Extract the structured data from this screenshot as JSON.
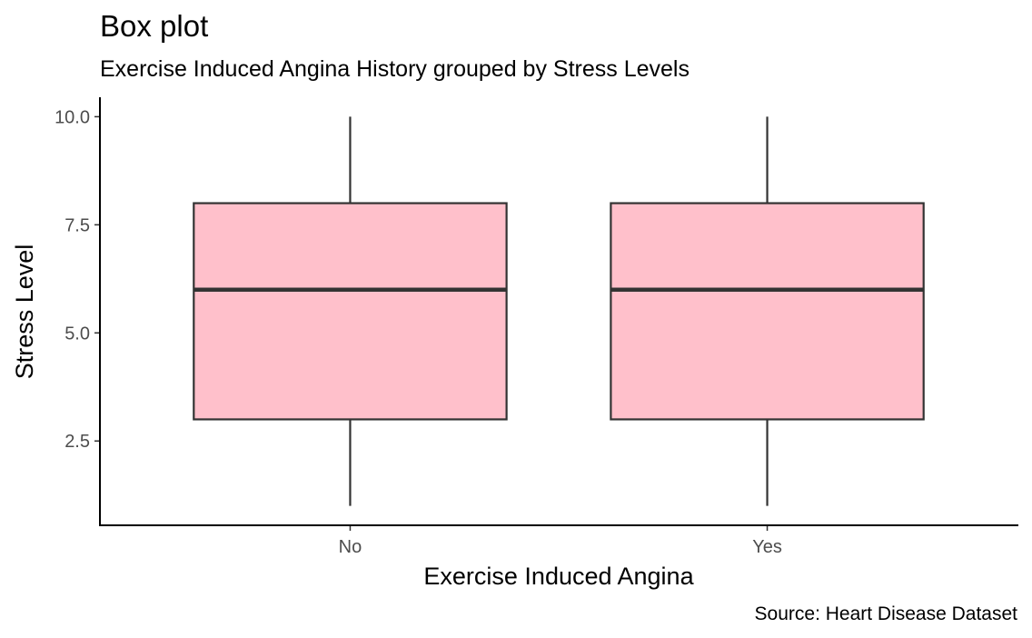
{
  "chart_data": {
    "type": "box",
    "title": "Box plot",
    "subtitle": "Exercise Induced Angina History grouped by Stress Levels",
    "xlabel": "Exercise Induced Angina",
    "ylabel": "Stress Level",
    "caption": "Source: Heart Disease Dataset",
    "categories": [
      "No",
      "Yes"
    ],
    "boxes": [
      {
        "category": "No",
        "min": 1,
        "q1": 3,
        "median": 6,
        "q3": 8,
        "max": 10
      },
      {
        "category": "Yes",
        "min": 1,
        "q1": 3,
        "median": 6,
        "q3": 8,
        "max": 10
      }
    ],
    "y_ticks": [
      2.5,
      5.0,
      7.5,
      10.0
    ],
    "y_tick_labels": [
      "2.5",
      "5.0",
      "7.5",
      "10.0"
    ],
    "ylim": [
      0.55,
      10.45
    ],
    "fill_color": "#ffc0cb",
    "outline_color": "#333333",
    "grid": false
  }
}
